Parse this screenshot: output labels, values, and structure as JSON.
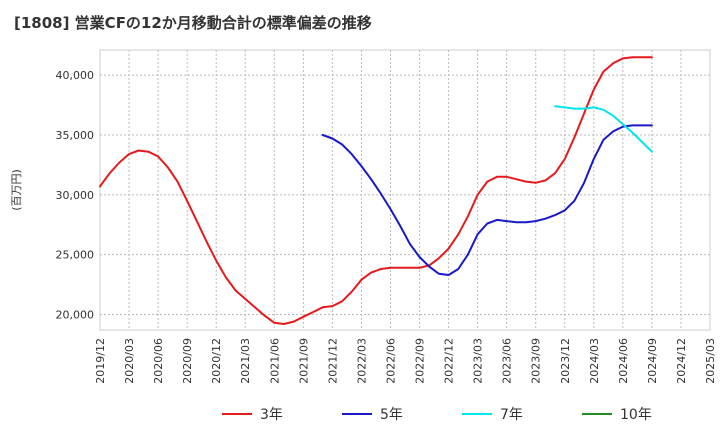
{
  "chart_data": {
    "type": "line",
    "title": "[1808]  営業CFの12か月移動合計の標準偏差の推移",
    "ylabel": "(百万円)",
    "xlabel": "",
    "ylim": [
      18700,
      42100
    ],
    "yticks": [
      20000,
      25000,
      30000,
      35000,
      40000
    ],
    "ytick_labels": [
      "20,000",
      "25,000",
      "30,000",
      "35,000",
      "40,000"
    ],
    "xticks": [
      "2019/12",
      "2020/03",
      "2020/06",
      "2020/09",
      "2020/12",
      "2021/03",
      "2021/06",
      "2021/09",
      "2021/12",
      "2022/03",
      "2022/06",
      "2022/09",
      "2022/12",
      "2023/03",
      "2023/06",
      "2023/09",
      "2023/12",
      "2024/03",
      "2024/06",
      "2024/09",
      "2024/12",
      "2025/03"
    ],
    "grid": true,
    "legend_position": "bottom",
    "series": [
      {
        "name": "3年",
        "color": "#e41a1c",
        "x": [
          "2019/12",
          "2020/01",
          "2020/02",
          "2020/03",
          "2020/04",
          "2020/05",
          "2020/06",
          "2020/07",
          "2020/08",
          "2020/09",
          "2020/10",
          "2020/11",
          "2020/12",
          "2021/01",
          "2021/02",
          "2021/03",
          "2021/04",
          "2021/05",
          "2021/06",
          "2021/07",
          "2021/08",
          "2021/09",
          "2021/10",
          "2021/11",
          "2021/12",
          "2022/01",
          "2022/02",
          "2022/03",
          "2022/04",
          "2022/05",
          "2022/06",
          "2022/07",
          "2022/08",
          "2022/09",
          "2022/10",
          "2022/11",
          "2022/12",
          "2023/01",
          "2023/02",
          "2023/03",
          "2023/04",
          "2023/05",
          "2023/06",
          "2023/07",
          "2023/08",
          "2023/09",
          "2023/10",
          "2023/11",
          "2023/12",
          "2024/01",
          "2024/02",
          "2024/03",
          "2024/04",
          "2024/05",
          "2024/06",
          "2024/07",
          "2024/08",
          "2024/09"
        ],
        "values": [
          30700,
          31800,
          32700,
          33400,
          33700,
          33600,
          33200,
          32300,
          31100,
          29500,
          27800,
          26100,
          24500,
          23100,
          22000,
          21300,
          20600,
          19900,
          19300,
          19200,
          19400,
          19800,
          20200,
          20600,
          20700,
          21100,
          21900,
          22900,
          23500,
          23800,
          23900,
          23900,
          23900,
          23900,
          24100,
          24700,
          25500,
          26700,
          28200,
          30000,
          31100,
          31500,
          31500,
          31300,
          31100,
          31000,
          31200,
          31800,
          33000,
          34800,
          36800,
          38800,
          40300,
          41000,
          41400,
          41500,
          41500,
          41500
        ]
      },
      {
        "name": "5年",
        "color": "#1919c8",
        "x": [
          "2021/11",
          "2021/12",
          "2022/01",
          "2022/02",
          "2022/03",
          "2022/04",
          "2022/05",
          "2022/06",
          "2022/07",
          "2022/08",
          "2022/09",
          "2022/10",
          "2022/11",
          "2022/12",
          "2023/01",
          "2023/02",
          "2023/03",
          "2023/04",
          "2023/05",
          "2023/06",
          "2023/07",
          "2023/08",
          "2023/09",
          "2023/10",
          "2023/11",
          "2023/12",
          "2024/01",
          "2024/02",
          "2024/03",
          "2024/04",
          "2024/05",
          "2024/06",
          "2024/07",
          "2024/08",
          "2024/09"
        ],
        "values": [
          35000,
          34700,
          34200,
          33400,
          32400,
          31300,
          30100,
          28800,
          27400,
          25900,
          24800,
          24000,
          23400,
          23300,
          23800,
          25000,
          26700,
          27600,
          27900,
          27800,
          27700,
          27700,
          27800,
          28000,
          28300,
          28700,
          29500,
          31000,
          33000,
          34600,
          35300,
          35700,
          35800,
          35800,
          35800
        ]
      },
      {
        "name": "7年",
        "color": "#00e5ee",
        "x": [
          "2023/11",
          "2023/12",
          "2024/01",
          "2024/02",
          "2024/03",
          "2024/04",
          "2024/05",
          "2024/06",
          "2024/07",
          "2024/08",
          "2024/09"
        ],
        "values": [
          37400,
          37300,
          37200,
          37200,
          37300,
          37100,
          36600,
          35900,
          35200,
          34400,
          33600
        ]
      },
      {
        "name": "10年",
        "color": "#228b22",
        "x": [],
        "values": []
      }
    ]
  }
}
